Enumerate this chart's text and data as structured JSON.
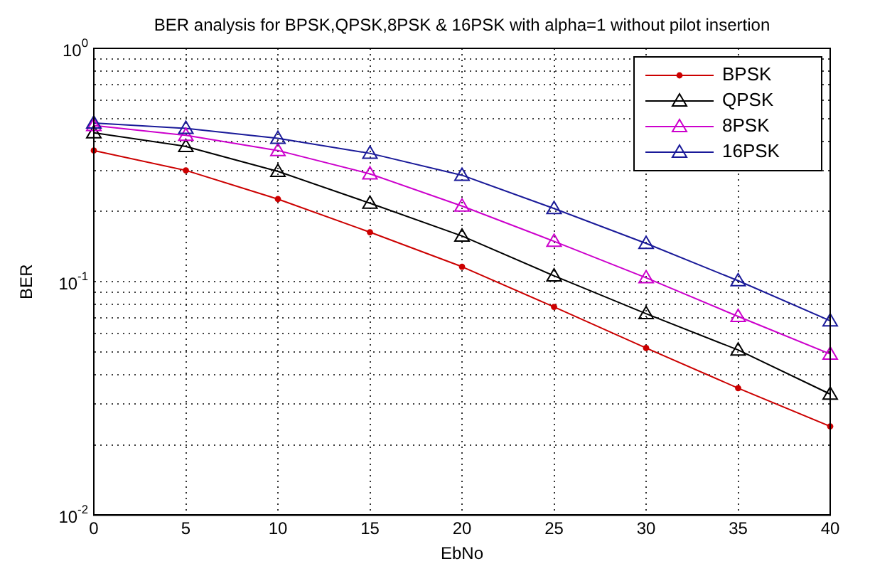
{
  "chart_data": {
    "type": "line",
    "title": "BER analysis for BPSK,QPSK,8PSK & 16PSK with alpha=1 without pilot insertion",
    "xlabel": "EbNo",
    "ylabel": "BER",
    "x": [
      0,
      5,
      10,
      15,
      20,
      25,
      30,
      35,
      40
    ],
    "series": [
      {
        "name": "BPSK",
        "color": "#cc0000",
        "marker": "circle",
        "values": [
          0.365,
          0.3,
          0.226,
          0.163,
          0.116,
          0.078,
          0.052,
          0.035,
          0.024
        ]
      },
      {
        "name": "QPSK",
        "color": "#000000",
        "marker": "triangle",
        "values": [
          0.435,
          0.38,
          0.297,
          0.217,
          0.157,
          0.106,
          0.073,
          0.051,
          0.033
        ]
      },
      {
        "name": "8PSK",
        "color": "#cc00cc",
        "marker": "triangle",
        "values": [
          0.467,
          0.424,
          0.365,
          0.29,
          0.211,
          0.149,
          0.104,
          0.071,
          0.049
        ]
      },
      {
        "name": "16PSK",
        "color": "#1a1a99",
        "marker": "triangle",
        "values": [
          0.479,
          0.454,
          0.412,
          0.355,
          0.286,
          0.206,
          0.146,
          0.101,
          0.068
        ]
      }
    ],
    "log": "y",
    "xlim": [
      0,
      40
    ],
    "xticks": [
      0,
      5,
      10,
      15,
      20,
      25,
      30,
      35,
      40
    ],
    "ylim": [
      0.01,
      1
    ],
    "yticks": [
      {
        "value": 0.01,
        "label": "10$^{-2}$"
      },
      {
        "value": 0.02,
        "label": null
      },
      {
        "value": 0.03,
        "label": null
      },
      {
        "value": 0.04,
        "label": null
      },
      {
        "value": 0.05,
        "label": null
      },
      {
        "value": 0.06,
        "label": null
      },
      {
        "value": 0.07,
        "label": null
      },
      {
        "value": 0.08,
        "label": null
      },
      {
        "value": 0.09,
        "label": null
      },
      {
        "value": 0.1,
        "label": "10$^{-1}$"
      },
      {
        "value": 0.2,
        "label": null
      },
      {
        "value": 0.3,
        "label": null
      },
      {
        "value": 0.4,
        "label": null
      },
      {
        "value": 0.5,
        "label": null
      },
      {
        "value": 0.6,
        "label": null
      },
      {
        "value": 0.7,
        "label": null
      },
      {
        "value": 0.8,
        "label": null
      },
      {
        "value": 0.9,
        "label": null
      },
      {
        "value": 1,
        "label": "10$^{0}$"
      }
    ],
    "grid": true,
    "legend": "top right",
    "line_style": "solid"
  }
}
